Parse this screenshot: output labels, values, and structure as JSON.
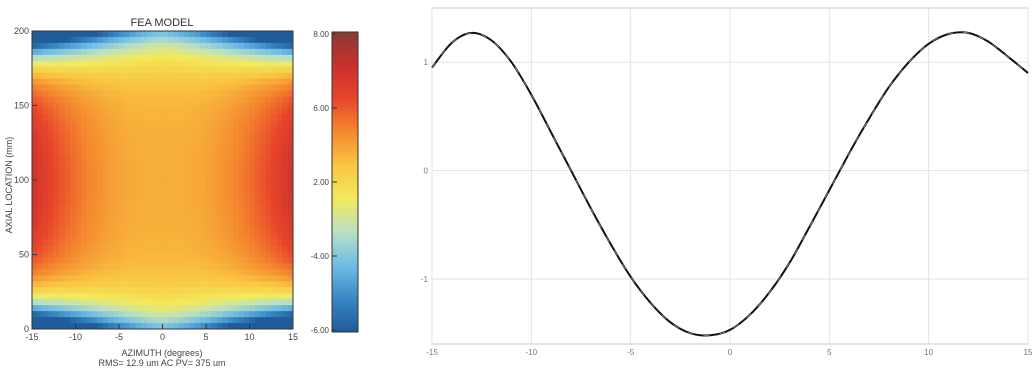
{
  "chart_data": [
    {
      "type": "heatmap",
      "title": "FEA MODEL",
      "xlabel": "AZIMUTH (degrees)",
      "ylabel": "AXIAL LOCATION (mm)",
      "footer": "RMS= 12.9 um  AC PV= 375 um",
      "xlim": [
        -15,
        15
      ],
      "ylim": [
        0,
        200
      ],
      "x_ticks": [
        "-15",
        "-10",
        "-5",
        "0",
        "5",
        "10",
        "15"
      ],
      "y_ticks": [
        "0",
        "50",
        "100",
        "150",
        "200"
      ],
      "colorbar": {
        "ticks": [
          "8.00",
          "6.00",
          "2.00",
          "-4.00",
          "-6.00"
        ],
        "colors": [
          "#1f5c99",
          "#3a86c4",
          "#6fbde6",
          "#b9e0c4",
          "#f3ea5c",
          "#f9c542",
          "#f4892e",
          "#e8452b",
          "#c8302c",
          "#8a3a36"
        ]
      },
      "field_description": "Sinusoidal displacement varying with azimuth (peak at +/-15 deg edges near mid-height) and with axial position (low at top and bottom corners)."
    },
    {
      "type": "line",
      "title": "",
      "xlabel": "",
      "ylabel": "",
      "x_ticks": [
        "-15",
        "-10",
        "-5",
        "0",
        "5",
        "10",
        "15"
      ],
      "y_ticks": [
        "1",
        "0",
        "-1"
      ],
      "xlim": [
        -15,
        15
      ],
      "ylim": [
        -1.6,
        1.5
      ],
      "grid": true,
      "series": [
        {
          "name": "",
          "color": "#111111",
          "x": [
            -15,
            -14,
            -13,
            -12,
            -11,
            -10,
            -9,
            -8,
            -7,
            -6,
            -5,
            -4,
            -3,
            -2,
            -1,
            0,
            1,
            2,
            3,
            4,
            5,
            6,
            7,
            8,
            9,
            10,
            11,
            12,
            13,
            14,
            15
          ],
          "y": [
            0.95,
            1.18,
            1.27,
            1.2,
            1.0,
            0.7,
            0.35,
            0.0,
            -0.35,
            -0.68,
            -0.98,
            -1.22,
            -1.4,
            -1.5,
            -1.52,
            -1.47,
            -1.33,
            -1.12,
            -0.85,
            -0.52,
            -0.18,
            0.16,
            0.48,
            0.77,
            1.0,
            1.17,
            1.26,
            1.27,
            1.19,
            1.05,
            0.9
          ]
        }
      ]
    }
  ]
}
